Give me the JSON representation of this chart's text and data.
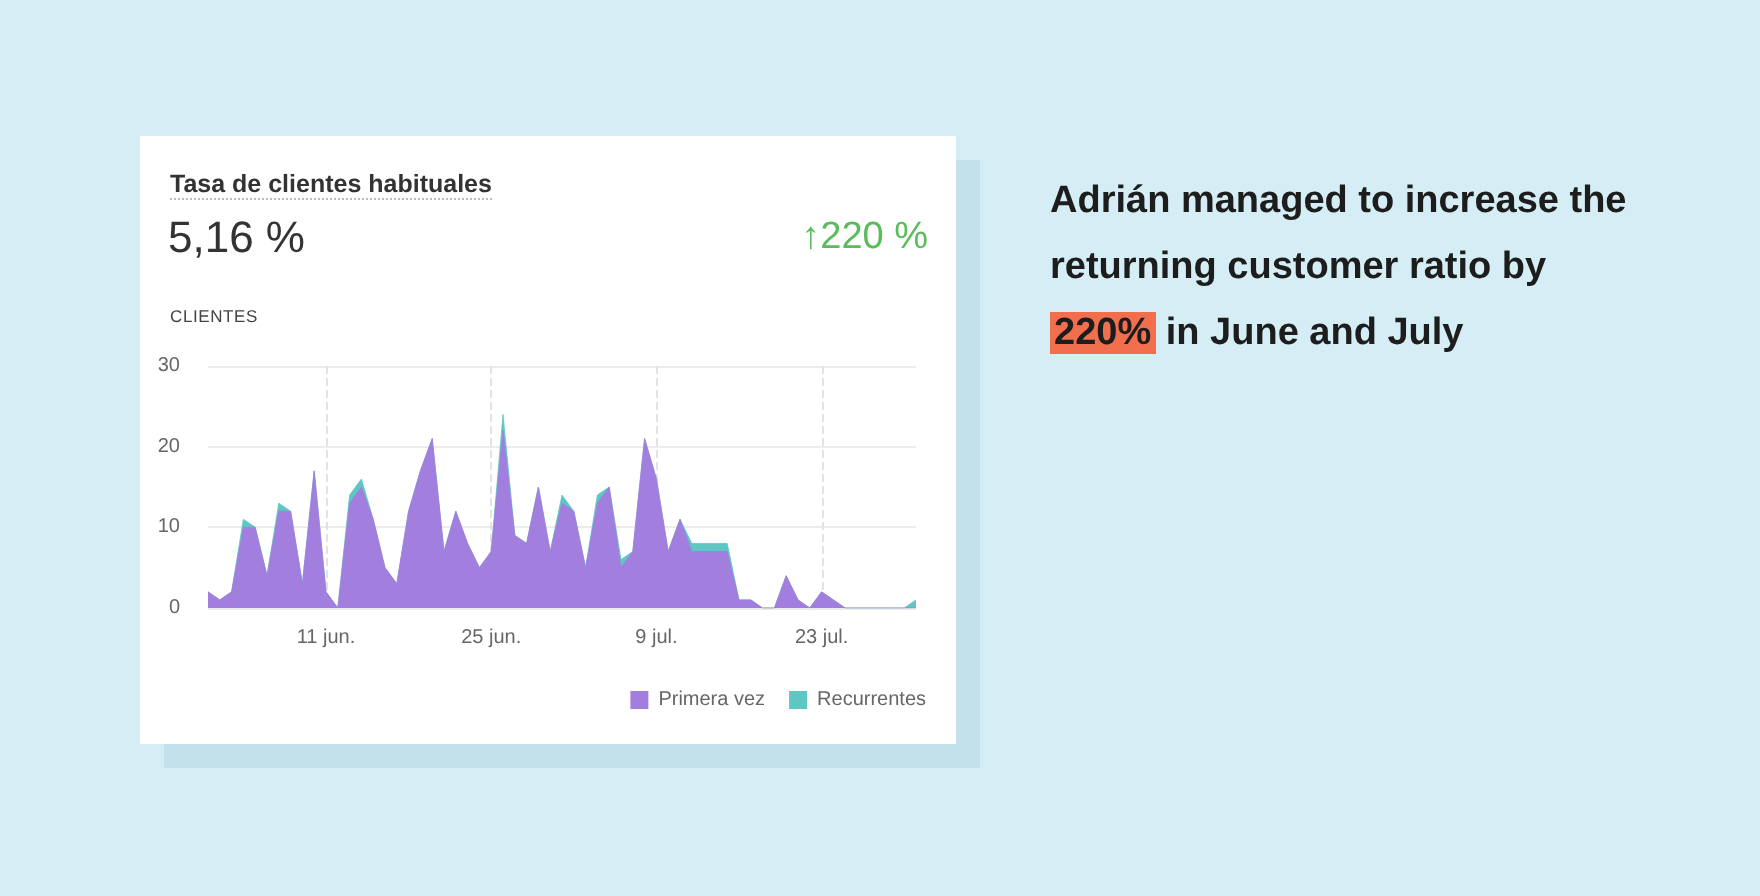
{
  "chart_data": {
    "type": "area",
    "stacked": true,
    "title": "Tasa de clientes habituales",
    "subtitle": "5,16 %",
    "ylabel": "CLIENTES",
    "annotations": [
      "↑220 %",
      "Adrián managed to increase the returning customer ratio by 220% in June and July"
    ],
    "x": [
      "--06-01",
      "--06-02",
      "--06-03",
      "--06-04",
      "--06-05",
      "--06-06",
      "--06-07",
      "--06-08",
      "--06-09",
      "--06-10",
      "--06-11",
      "--06-12",
      "--06-13",
      "--06-14",
      "--06-15",
      "--06-16",
      "--06-17",
      "--06-18",
      "--06-19",
      "--06-20",
      "--06-21",
      "--06-22",
      "--06-23",
      "--06-24",
      "--06-25",
      "--06-26",
      "--06-27",
      "--06-28",
      "--06-29",
      "--06-30",
      "--07-01",
      "--07-02",
      "--07-03",
      "--07-04",
      "--07-05",
      "--07-06",
      "--07-07",
      "--07-08",
      "--07-09",
      "--07-10",
      "--07-11",
      "--07-12",
      "--07-13",
      "--07-14",
      "--07-15",
      "--07-16",
      "--07-17",
      "--07-18",
      "--07-19",
      "--07-20",
      "--07-21",
      "--07-22",
      "--07-23",
      "--07-24",
      "--07-25",
      "--07-26",
      "--07-27",
      "--07-28",
      "--07-29",
      "--07-30",
      "--07-31"
    ],
    "series": [
      {
        "name": "Primera vez",
        "color": "#a27fdf",
        "values": [
          2,
          1,
          2,
          10,
          10,
          4,
          12,
          12,
          3,
          17,
          2,
          0,
          13,
          15,
          11,
          5,
          3,
          12,
          17,
          21,
          7,
          12,
          8,
          5,
          7,
          22,
          9,
          8,
          15,
          7,
          13,
          12,
          5,
          13,
          15,
          5,
          7,
          21,
          16,
          7,
          11,
          7,
          7,
          7,
          7,
          1,
          1,
          0,
          0,
          4,
          1,
          0,
          2,
          1,
          0,
          0,
          0,
          0,
          0,
          0,
          0
        ]
      },
      {
        "name": "Recurrentes",
        "color": "#5ec6c3",
        "values": [
          0,
          0,
          0,
          1,
          0,
          0,
          1,
          0,
          0,
          0,
          0,
          0,
          1,
          1,
          0,
          0,
          0,
          0,
          0,
          0,
          0,
          0,
          0,
          0,
          0,
          2,
          0,
          0,
          0,
          0,
          1,
          0,
          0,
          1,
          0,
          1,
          0,
          0,
          0,
          0,
          0,
          1,
          1,
          1,
          1,
          0,
          0,
          0,
          0,
          0,
          0,
          0,
          0,
          0,
          0,
          0,
          0,
          0,
          0,
          0,
          1
        ]
      }
    ],
    "xlim": [
      "--06-01",
      "--07-31"
    ],
    "xticks": [
      {
        "value": "--06-11",
        "label": "11 jun."
      },
      {
        "value": "--06-25",
        "label": "25 jun."
      },
      {
        "value": "--07-09",
        "label": "9 jul."
      },
      {
        "value": "--07-23",
        "label": "23 jul."
      }
    ],
    "ylim": [
      0,
      30
    ],
    "yticks": [
      0,
      10,
      20,
      30
    ],
    "grid": true,
    "legend": "bottom right",
    "marker": "none"
  }
}
